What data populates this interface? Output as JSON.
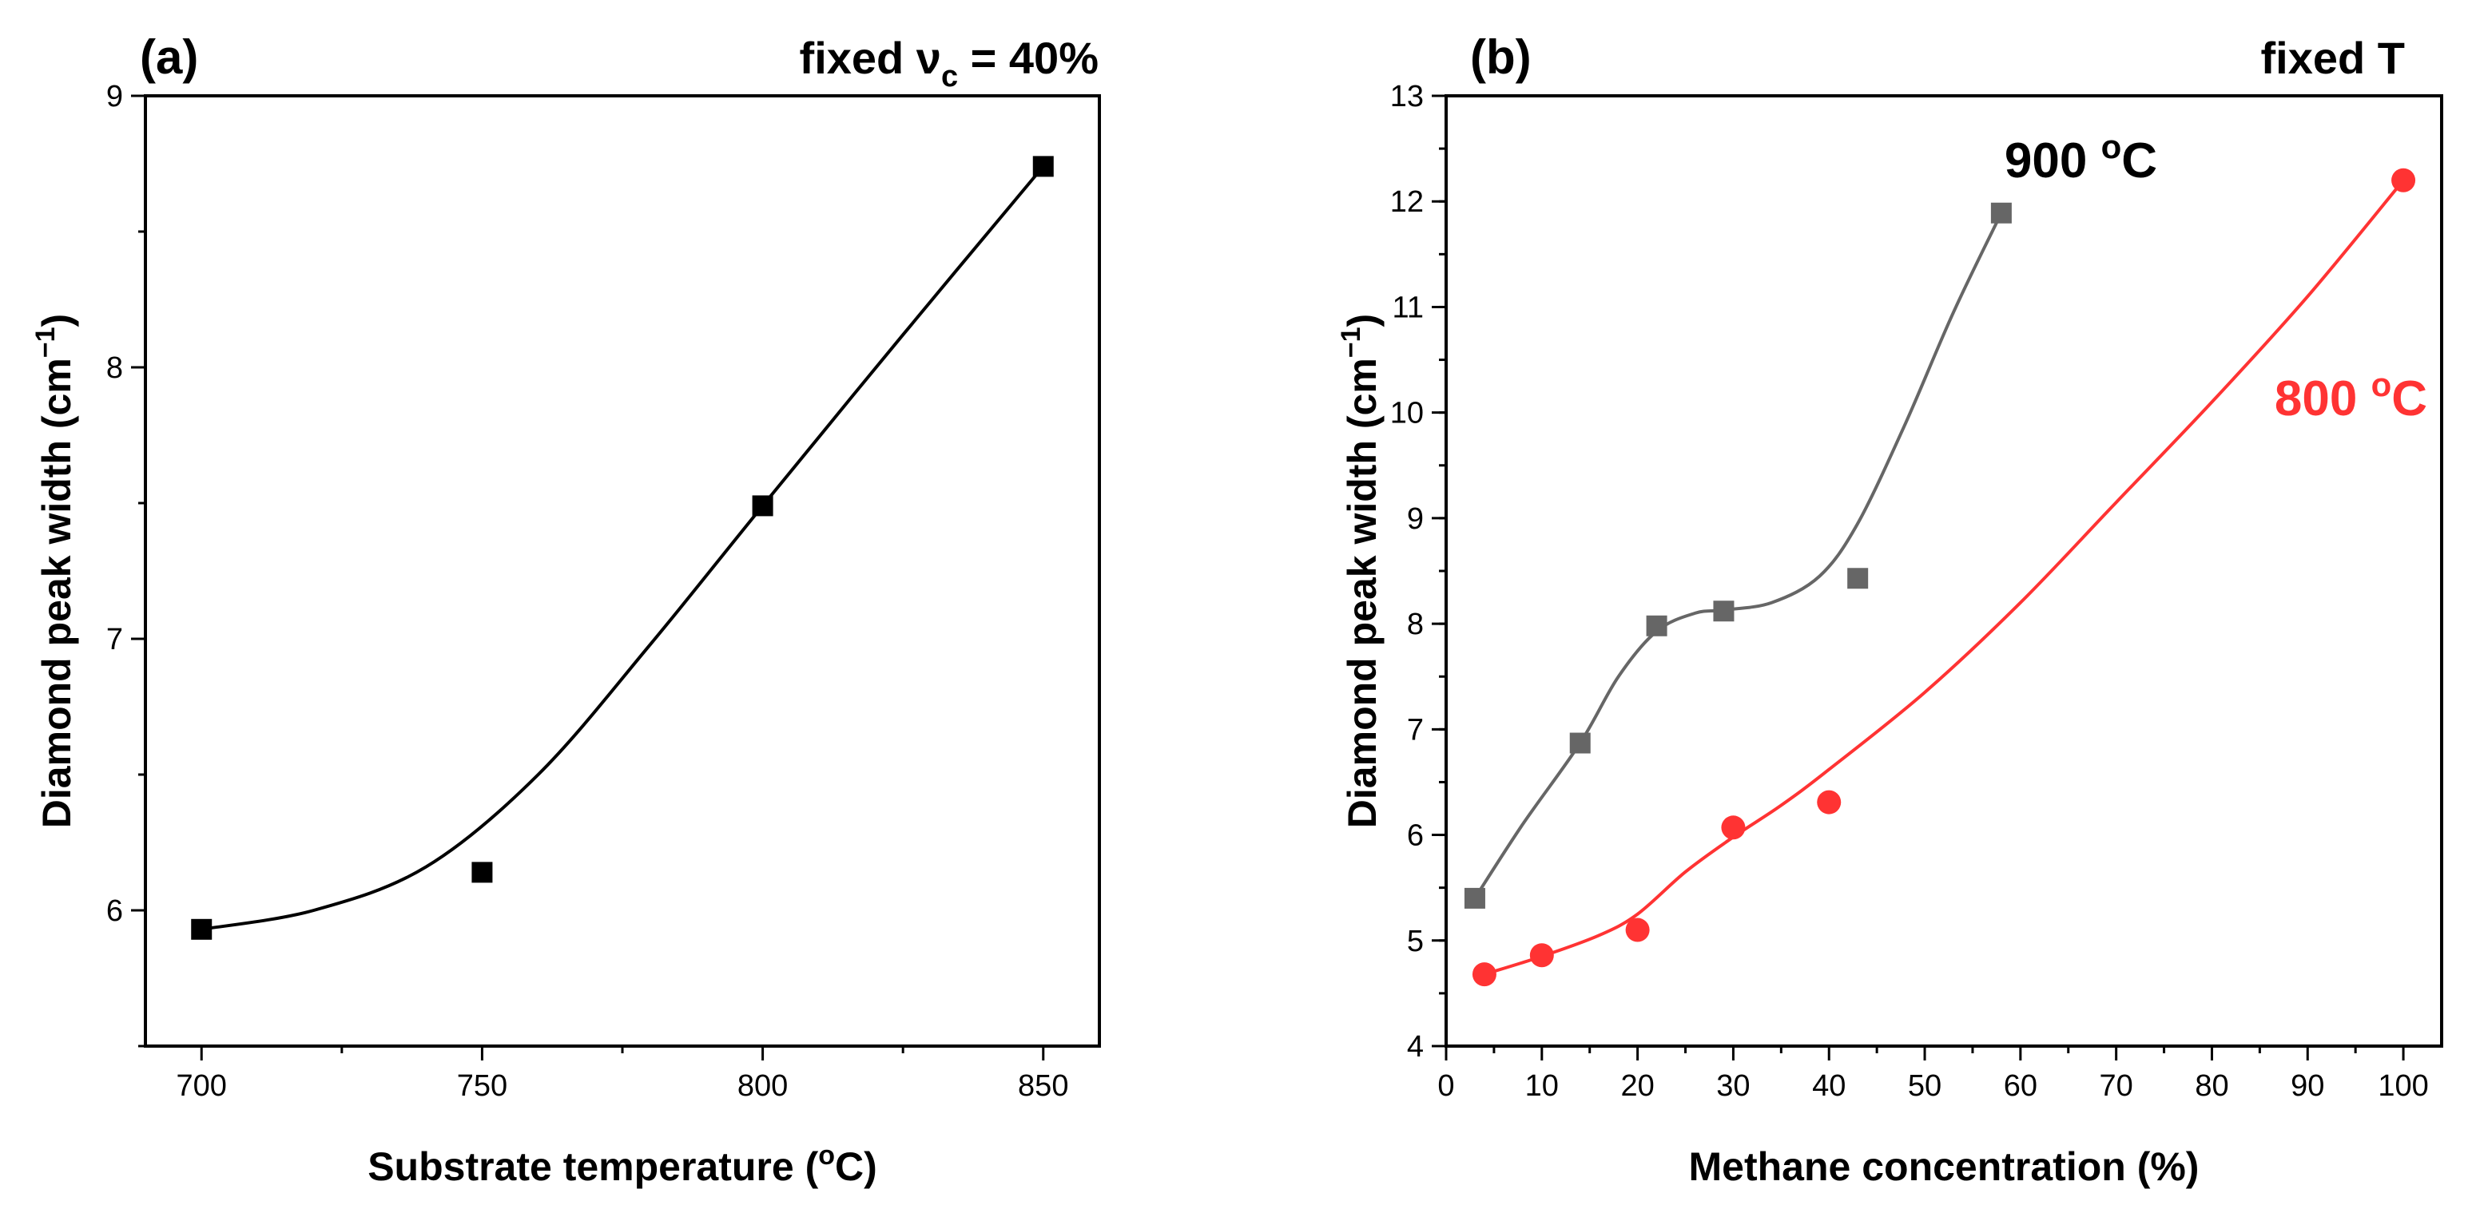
{
  "chart_data": [
    {
      "type": "scatter",
      "panel_label": "(a)",
      "condition": {
        "prefix": "fixed ν",
        "subscript": "c",
        "suffix": " = 40%"
      },
      "xlabel": "Substrate temperature (°C)",
      "xlabel_parts": {
        "before": "Substrate temperature (",
        "sup": "o",
        "after": "C)"
      },
      "ylabel": "Diamond peak width (cm⁻¹)",
      "ylabel_parts": {
        "before": "Diamond peak width (cm",
        "sup": "−1",
        "after": ")"
      },
      "xlim": [
        690,
        860
      ],
      "ylim": [
        5.5,
        9
      ],
      "xticks": [
        700,
        750,
        800,
        850
      ],
      "yticks": [
        6,
        7,
        8,
        9
      ],
      "series": [
        {
          "name": "fixed ν_c = 40%",
          "marker": "square",
          "color": "#000000",
          "x": [
            700,
            750,
            800,
            850
          ],
          "y": [
            5.93,
            6.14,
            7.49,
            8.74
          ],
          "fit": [
            [
              700,
              5.93
            ],
            [
              720,
              6.0
            ],
            [
              740,
              6.16
            ],
            [
              760,
              6.5
            ],
            [
              780,
              6.98
            ],
            [
              800,
              7.49
            ],
            [
              825,
              8.12
            ],
            [
              850,
              8.74
            ]
          ]
        }
      ]
    },
    {
      "type": "scatter",
      "panel_label": "(b)",
      "condition_text": "fixed T",
      "xlabel": "Methane concentration (%)",
      "ylabel": "Diamond peak width (cm⁻¹)",
      "ylabel_parts": {
        "before": "Diamond peak width (cm",
        "sup": "−1",
        "after": ")"
      },
      "xlim": [
        0,
        104
      ],
      "ylim": [
        4,
        13
      ],
      "xticks": [
        0,
        10,
        20,
        30,
        40,
        50,
        60,
        70,
        80,
        90,
        100
      ],
      "yticks": [
        4,
        5,
        6,
        7,
        8,
        9,
        10,
        11,
        12,
        13
      ],
      "series": [
        {
          "name": "900 °C",
          "label_parts": {
            "before": "900 ",
            "sup": "o",
            "after": "C"
          },
          "marker": "square",
          "color": "#666666",
          "x": [
            3,
            14,
            22,
            29,
            43,
            58
          ],
          "y": [
            5.4,
            6.87,
            7.98,
            8.12,
            8.43,
            11.89
          ],
          "fit": [
            [
              3,
              5.4
            ],
            [
              8,
              6.1
            ],
            [
              14,
              6.87
            ],
            [
              18,
              7.5
            ],
            [
              22,
              7.93
            ],
            [
              26,
              8.1
            ],
            [
              29,
              8.13
            ],
            [
              34,
              8.2
            ],
            [
              39,
              8.45
            ],
            [
              43,
              8.95
            ],
            [
              48,
              9.9
            ],
            [
              53,
              10.95
            ],
            [
              58,
              11.89
            ]
          ]
        },
        {
          "name": "800 °C",
          "label_parts": {
            "before": "800 ",
            "sup": "o",
            "after": "C"
          },
          "marker": "circle",
          "color": "#ff3333",
          "x": [
            4,
            10,
            20,
            30,
            40,
            100
          ],
          "y": [
            4.68,
            4.86,
            5.1,
            6.07,
            6.31,
            12.2
          ],
          "fit": [
            [
              4,
              4.68
            ],
            [
              10,
              4.85
            ],
            [
              16,
              5.05
            ],
            [
              20,
              5.25
            ],
            [
              25,
              5.65
            ],
            [
              30,
              5.98
            ],
            [
              35,
              6.28
            ],
            [
              40,
              6.62
            ],
            [
              50,
              7.35
            ],
            [
              60,
              8.2
            ],
            [
              70,
              9.15
            ],
            [
              80,
              10.1
            ],
            [
              90,
              11.1
            ],
            [
              100,
              12.2
            ]
          ]
        }
      ]
    }
  ],
  "colors": {
    "axis": "#000000",
    "series_a": "#000000",
    "series_900": "#666666",
    "series_800": "#ff3333"
  }
}
